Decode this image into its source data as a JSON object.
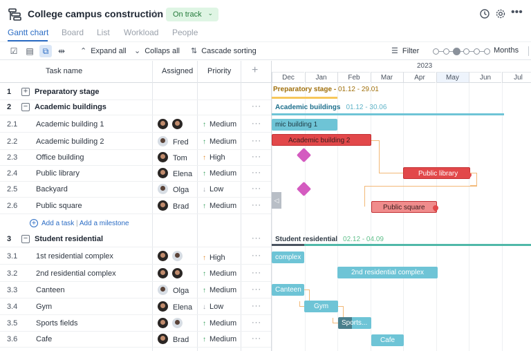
{
  "project": {
    "title": "College campus construction",
    "status": "On track"
  },
  "tabs": [
    "Gantt chart",
    "Board",
    "List",
    "Workload",
    "People"
  ],
  "toolbar": {
    "expand_all": "Expand all",
    "collapse_all": "Collaps all",
    "cascade_sorting": "Cascade sorting",
    "filter": "Filter",
    "zoom_level": "Months"
  },
  "grid": {
    "columns": {
      "task_name": "Task name",
      "assigned": "Assigned",
      "priority": "Priority"
    },
    "add_task": "Add a task",
    "add_milestone": "Add a milestone",
    "rows": [
      {
        "num": "1",
        "name": "Preparatory stage",
        "group": true,
        "toggle": "+"
      },
      {
        "num": "2",
        "name": "Academic buildings",
        "group": true,
        "toggle": "−"
      },
      {
        "num": "2.1",
        "name": "Academic building 1",
        "assignee": "",
        "priority": "Medium"
      },
      {
        "num": "2.2",
        "name": "Academic building 2",
        "assignee": "Fred",
        "priority": "Medium"
      },
      {
        "num": "2.3",
        "name": "Office building",
        "assignee": "Tom",
        "priority": "High"
      },
      {
        "num": "2.4",
        "name": "Public library",
        "assignee": "Elena",
        "priority": "Medium"
      },
      {
        "num": "2.5",
        "name": "Backyard",
        "assignee": "Olga",
        "priority": "Low"
      },
      {
        "num": "2.6",
        "name": "Public square",
        "assignee": "Brad",
        "priority": "Medium"
      },
      {
        "num": "3",
        "name": "Student residential",
        "group": true,
        "toggle": "−"
      },
      {
        "num": "3.1",
        "name": "1st residential complex",
        "assignee": "",
        "priority": "High"
      },
      {
        "num": "3.2",
        "name": "2nd residential complex",
        "assignee": "",
        "priority": "Medium"
      },
      {
        "num": "3.3",
        "name": "Canteen",
        "assignee": "Olga",
        "priority": "Medium"
      },
      {
        "num": "3.4",
        "name": "Gym",
        "assignee": "Elena",
        "priority": "Low"
      },
      {
        "num": "3.5",
        "name": "Sports fields",
        "assignee": "",
        "priority": "Medium"
      },
      {
        "num": "3.6",
        "name": "Cafe",
        "assignee": "Brad",
        "priority": "Medium"
      }
    ]
  },
  "gantt": {
    "year": "2023",
    "months": [
      "Dec",
      "Jan",
      "Feb",
      "Mar",
      "Apr",
      "May",
      "Jun",
      "Jul"
    ],
    "current_month": "May",
    "groups": {
      "preparatory": {
        "label": "Preparatory stage",
        "dates": "01.12 - 29.01",
        "color": "#a0700c"
      },
      "academic": {
        "label": "Academic buildings",
        "dates": "01.12 - 30.06",
        "color": "#1d6f8c"
      },
      "residential": {
        "label": "Student residential",
        "dates": "02.12 - 04.09",
        "color": "#2f3a45"
      }
    },
    "bars": {
      "b21": "mic building 1",
      "b22": "Academic building 2",
      "b24": "Public library",
      "b26": "Public square",
      "b31": "complex",
      "b32": "2nd residential complex",
      "b33": "Canteen",
      "b34": "Gym",
      "b35": "Sports...",
      "b36": "Cafe"
    },
    "colors": {
      "teal": "#6ec4d6",
      "red": "#e2484a",
      "milestone": "#d45bc0",
      "dependency": "#f2b877"
    }
  }
}
